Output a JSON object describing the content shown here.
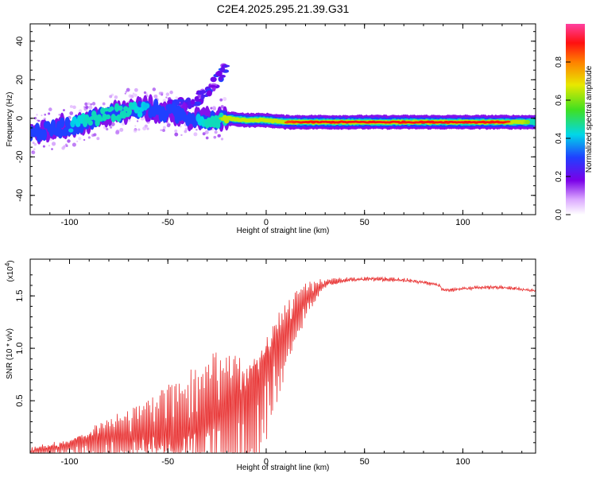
{
  "title": "C2E4.2025.295.21.39.G31",
  "chart_data": [
    {
      "type": "heatmap",
      "description_ref": "spectrogram",
      "xlabel": "Height of straight line (km)",
      "ylabel": "Frequency (Hz)",
      "xlim": [
        -120,
        137
      ],
      "ylim": [
        -50,
        49
      ],
      "xticks": [
        -100,
        -50,
        0,
        50,
        100
      ],
      "xtick_labels": [
        "-100",
        "-50",
        "0",
        "50",
        "100"
      ],
      "yticks": [
        -40,
        -20,
        0,
        20,
        40
      ],
      "ytick_labels": [
        "-40",
        "-20",
        "0",
        "20",
        "40"
      ],
      "colorbar": {
        "label": "Normalized spectral amplitude",
        "range": [
          0,
          1
        ],
        "ticks": [
          0.0,
          0.2,
          0.4,
          0.6,
          0.8
        ],
        "tick_labels": [
          "0.0",
          "0.2",
          "0.4",
          "0.6",
          "0.8"
        ]
      },
      "ridge": {
        "x": [
          -120,
          -110,
          -100,
          -90,
          -80,
          -70,
          -60,
          -50,
          -40,
          -35,
          -30,
          -25,
          -20,
          -10,
          0,
          10,
          20,
          30,
          40,
          60,
          80,
          90,
          100,
          120,
          137
        ],
        "freq": [
          -8,
          -6,
          -4,
          -1,
          2,
          4,
          5,
          3,
          1,
          0,
          -1,
          -1,
          0,
          -1,
          -1,
          -2,
          -2,
          -2,
          -2,
          -2,
          -2,
          -2,
          -2,
          -2,
          -2
        ],
        "amplitude": [
          0.35,
          0.35,
          0.4,
          0.45,
          0.45,
          0.45,
          0.4,
          0.35,
          0.35,
          0.4,
          0.45,
          0.55,
          0.7,
          0.8,
          0.8,
          0.85,
          0.9,
          0.95,
          0.98,
          0.98,
          0.9,
          0.95,
          0.95,
          0.95,
          0.5
        ]
      },
      "branch": {
        "x": [
          -60,
          -50,
          -40,
          -35,
          -30,
          -25,
          -20
        ],
        "freq": [
          2,
          5,
          8,
          10,
          14,
          20,
          27
        ]
      }
    },
    {
      "type": "line",
      "description_ref": "snr",
      "xlabel": "Height of straight line (km)",
      "ylabel": "SNR (10 * v/v)",
      "scale_label": "(x10",
      "scale_exp": "4",
      "xlim": [
        -120,
        137
      ],
      "ylim": [
        0,
        1.85
      ],
      "xticks": [
        -100,
        -50,
        0,
        50,
        100
      ],
      "xtick_labels": [
        "-100",
        "-50",
        "0",
        "50",
        "100"
      ],
      "yticks": [
        0.5,
        1.0,
        1.5
      ],
      "ytick_labels": [
        "0.5",
        "1.0",
        "1.5"
      ],
      "series": [
        {
          "name": "SNR",
          "color": "#e83030",
          "baseline": {
            "x": [
              -120,
              -100,
              -90,
              -80,
              -60,
              -40,
              -30,
              -20,
              -10,
              -5,
              0,
              5,
              10,
              15,
              20,
              25,
              30,
              40,
              50,
              60,
              70,
              80,
              88,
              90,
              100,
              110,
              120,
              137
            ],
            "y": [
              0.02,
              0.06,
              0.12,
              0.14,
              0.18,
              0.25,
              0.32,
              0.38,
              0.5,
              0.6,
              0.75,
              0.95,
              1.15,
              1.3,
              1.45,
              1.55,
              1.62,
              1.65,
              1.66,
              1.66,
              1.65,
              1.63,
              1.6,
              1.55,
              1.57,
              1.58,
              1.58,
              1.55
            ]
          },
          "envelope": {
            "x": [
              -120,
              -100,
              -90,
              -80,
              -60,
              -40,
              -30,
              -20,
              -10,
              0,
              10,
              15,
              20,
              25,
              30,
              40,
              137
            ],
            "amp": [
              0.05,
              0.1,
              0.2,
              0.25,
              0.35,
              0.55,
              0.7,
              0.8,
              0.75,
              0.65,
              0.4,
              0.3,
              0.2,
              0.12,
              0.05,
              0.02,
              0.01
            ]
          }
        }
      ]
    }
  ]
}
